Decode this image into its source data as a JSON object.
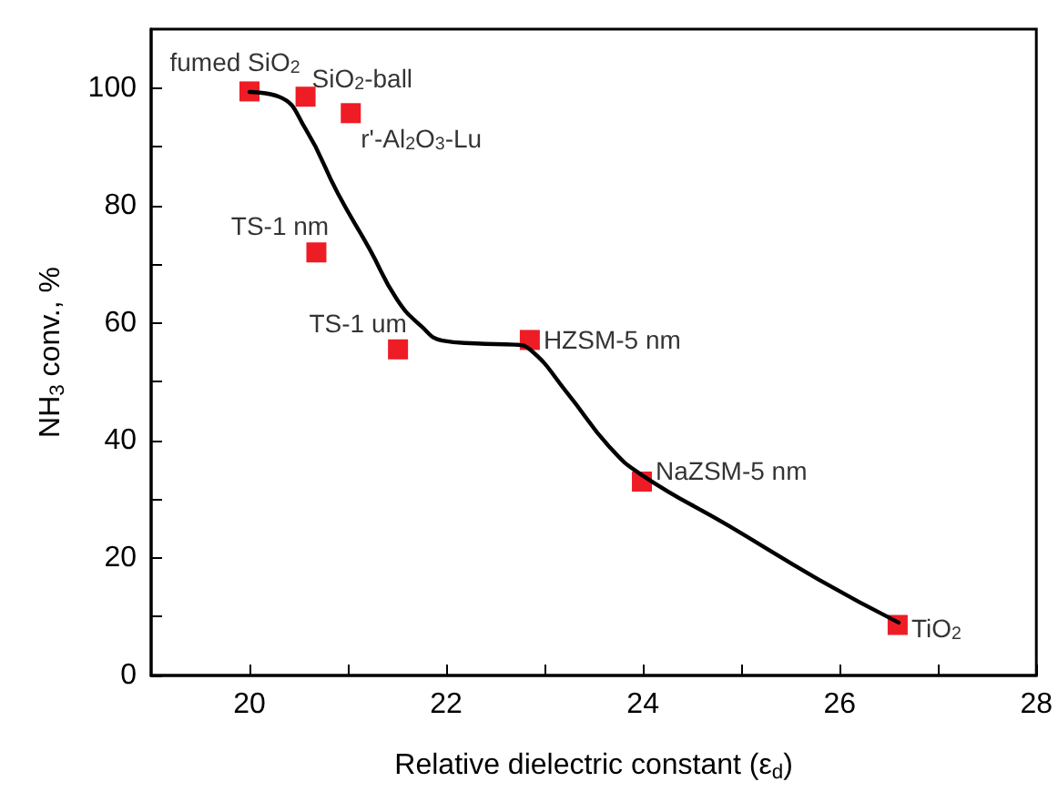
{
  "chart_data": {
    "type": "scatter",
    "xlabel": "Relative dielectric constant (ε$_{d}$)",
    "ylabel": "NH$_{3}$ conv., %",
    "xlim": [
      19,
      28
    ],
    "xticks": [
      20,
      22,
      24,
      26,
      28
    ],
    "ylim": [
      0,
      110
    ],
    "yticks": [
      0,
      20,
      40,
      60,
      80,
      100
    ],
    "grid": false,
    "series": [
      {
        "type": "line",
        "color": "#000000",
        "marker": "none",
        "line_style": "solid",
        "x": [
          20,
          20.3,
          20.57,
          20.9,
          21.22,
          21.5,
          21.75,
          21.96,
          22.3,
          22.7,
          22.85,
          23.23,
          23.66,
          24,
          24.87,
          25.79,
          26.6
        ],
        "values": [
          99.3,
          98.5,
          93,
          82,
          72.6,
          64,
          59.4,
          57,
          56.5,
          56.3,
          55.5,
          48.1,
          38.9,
          34,
          25.5,
          16.3,
          9
        ]
      },
      {
        "color": "#ee1c25",
        "marker": "square",
        "x": [
          20,
          20.57,
          21.03,
          20.68,
          21.51,
          22.85,
          23.99,
          26.59
        ],
        "values": [
          99.4,
          98.5,
          95.7,
          72,
          55.5,
          57.1,
          33,
          8.6
        ]
      }
    ],
    "annotations": [
      {
        "text": "fumed SiO$_{2}$",
        "x": 20,
        "y": 99.4
      },
      {
        "text": "SiO$_{2}$-ball",
        "x": 20.57,
        "y": 98.5
      },
      {
        "text": "r'-Al$_{2}$O$_{3}$-Lu",
        "x": 21.03,
        "y": 95.7
      },
      {
        "text": "TS-1 nm",
        "x": 20.68,
        "y": 72
      },
      {
        "text": "TS-1 um",
        "x": 21.51,
        "y": 55.5
      },
      {
        "text": "HZSM-5 nm",
        "x": 22.85,
        "y": 57.1
      },
      {
        "text": "NaZSM-5 nm",
        "x": 23.99,
        "y": 33
      },
      {
        "text": "TiO$_{2}$",
        "x": 26.59,
        "y": 8.6
      }
    ]
  }
}
